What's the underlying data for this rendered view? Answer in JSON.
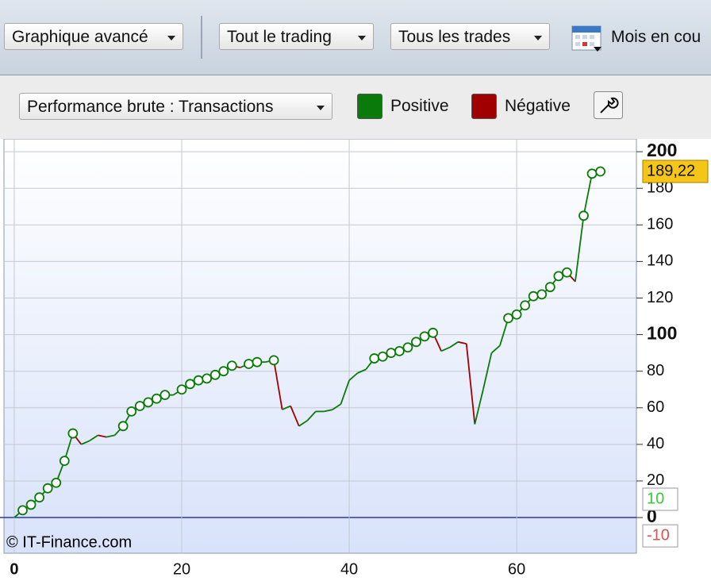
{
  "toolbar": {
    "items": [
      "Graphique avancé",
      "Tout le trading",
      "Tous les trades",
      "Mois en cou"
    ]
  },
  "controls": {
    "dropdown": "Performance brute : Transactions"
  },
  "chart_data": {
    "type": "line",
    "legend": [
      {
        "name": "Positive",
        "color": "#0a7a0a"
      },
      {
        "name": "Négative",
        "color": "#a00000"
      }
    ],
    "x": [
      0,
      1,
      2,
      3,
      4,
      5,
      6,
      7,
      8,
      9,
      10,
      11,
      12,
      13,
      14,
      15,
      16,
      17,
      18,
      19,
      20,
      21,
      22,
      23,
      24,
      25,
      26,
      27,
      28,
      29,
      30,
      31,
      32,
      33,
      34,
      35,
      36,
      37,
      38,
      39,
      40,
      41,
      42,
      43,
      44,
      45,
      46,
      47,
      48,
      49,
      50,
      51,
      52,
      53,
      54,
      55,
      56,
      57,
      58,
      59,
      60,
      61,
      62,
      63,
      64,
      65,
      66,
      67,
      68,
      69,
      70
    ],
    "values": [
      0,
      4,
      7,
      11,
      16,
      19,
      31,
      46,
      40,
      42,
      45,
      44,
      45,
      50,
      58,
      61,
      63,
      65,
      67,
      67,
      70,
      73,
      75,
      76,
      78,
      80,
      83,
      82,
      84,
      85,
      85,
      86,
      59,
      61,
      50,
      53,
      58,
      58,
      59,
      62,
      75,
      79,
      81,
      87,
      88,
      90,
      91,
      93,
      96,
      99,
      101,
      91,
      93,
      96,
      95,
      51,
      70,
      90,
      94,
      109,
      111,
      116,
      121,
      122,
      126,
      132,
      134,
      129,
      165,
      188,
      189.22
    ],
    "xlim": [
      -1.23,
      74.3
    ],
    "ylim": [
      -19.5,
      207
    ],
    "xticks": [
      0,
      20,
      40,
      60
    ],
    "yticks": [
      0,
      20,
      40,
      60,
      80,
      100,
      120,
      140,
      160,
      180,
      200
    ],
    "grid": true,
    "last_value": {
      "value": 189.22,
      "label": "189,22"
    },
    "badges": [
      {
        "value": 10,
        "color": "#3cc83c"
      },
      {
        "value": -10,
        "color": "#d9534f"
      }
    ],
    "watermark": "© IT-Finance.com"
  }
}
